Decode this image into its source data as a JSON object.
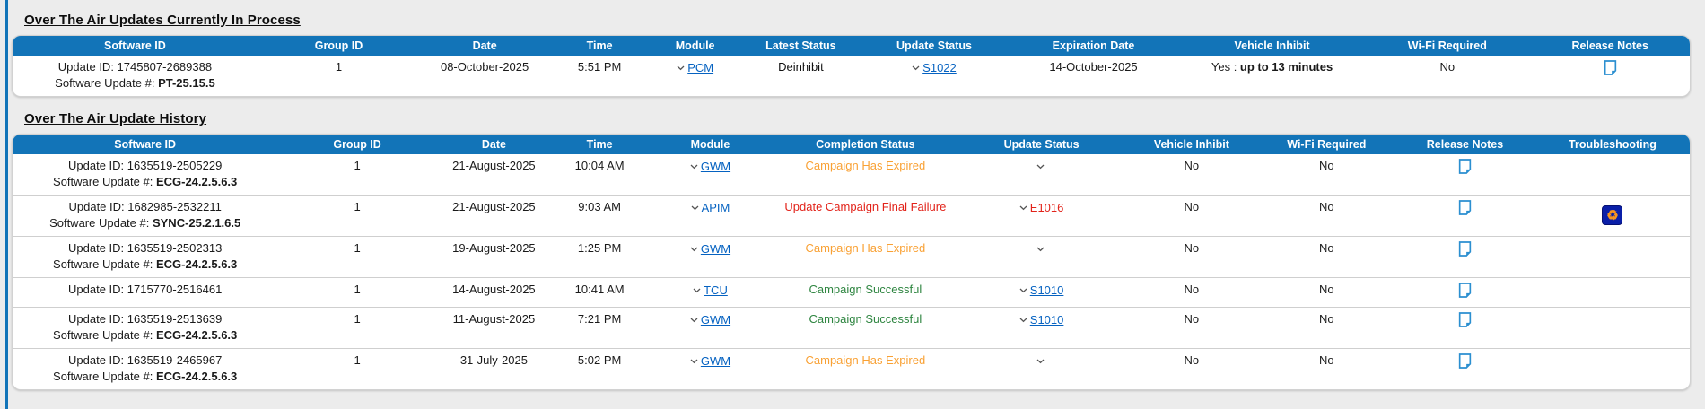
{
  "colors": {
    "header_bar": "#1274B8",
    "page_bg": "#ECECEC",
    "link_blue": "#0562C1",
    "status_expired": "#F9A134",
    "status_failed": "#E2231A",
    "status_success": "#2E8540",
    "note_icon": "#2B8FD0",
    "troubleshoot_bg": "#0A1FA8",
    "troubleshoot_glyph": "#F7941D"
  },
  "labels": {
    "update_id_prefix": "Update ID: ",
    "software_update_prefix": "Software Update #: "
  },
  "in_process": {
    "title": "Over The Air Updates Currently In Process",
    "columns": [
      "Software ID",
      "Group ID",
      "Date",
      "Time",
      "Module",
      "Latest Status",
      "Update Status",
      "Expiration Date",
      "Vehicle Inhibit",
      "Wi-Fi Required",
      "Release Notes"
    ],
    "rows": [
      {
        "update_id": "1745807-2689388",
        "software_update": "PT-25.15.5",
        "group_id": "1",
        "date": "08-October-2025",
        "time": "5:51 PM",
        "module": "PCM",
        "latest_status": "Deinhibit",
        "status_kind": "plain",
        "update_status": "S1022",
        "expiration_date": "14-October-2025",
        "vehicle_inhibit_prefix": "Yes : ",
        "vehicle_inhibit_bold": "up to 13 minutes",
        "wifi_required": "No",
        "release_notes": true
      }
    ]
  },
  "history": {
    "title": "Over The Air Update History",
    "columns": [
      "Software ID",
      "Group ID",
      "Date",
      "Time",
      "Module",
      "Completion Status",
      "Update Status",
      "Vehicle Inhibit",
      "Wi-Fi Required",
      "Release Notes",
      "Troubleshooting"
    ],
    "rows": [
      {
        "update_id": "1635519-2505229",
        "software_update": "ECG-24.2.5.6.3",
        "group_id": "1",
        "date": "21-August-2025",
        "time": "10:04 AM",
        "module": "GWM",
        "completion_status": "Campaign Has Expired",
        "status_kind": "expired",
        "update_status": "",
        "vehicle_inhibit": "No",
        "wifi_required": "No",
        "release_notes": true,
        "troubleshooting": false
      },
      {
        "update_id": "1682985-2532211",
        "software_update": "SYNC-25.2.1.6.5",
        "group_id": "1",
        "date": "21-August-2025",
        "time": "9:03 AM",
        "module": "APIM",
        "completion_status": "Update Campaign Final Failure",
        "status_kind": "failed",
        "update_status": "E1016",
        "vehicle_inhibit": "No",
        "wifi_required": "No",
        "release_notes": true,
        "troubleshooting": true
      },
      {
        "update_id": "1635519-2502313",
        "software_update": "ECG-24.2.5.6.3",
        "group_id": "1",
        "date": "19-August-2025",
        "time": "1:25 PM",
        "module": "GWM",
        "completion_status": "Campaign Has Expired",
        "status_kind": "expired",
        "update_status": "",
        "vehicle_inhibit": "No",
        "wifi_required": "No",
        "release_notes": true,
        "troubleshooting": false
      },
      {
        "update_id": "1715770-2516461",
        "software_update": "",
        "group_id": "1",
        "date": "14-August-2025",
        "time": "10:41 AM",
        "module": "TCU",
        "completion_status": "Campaign Successful",
        "status_kind": "success",
        "update_status": "S1010",
        "vehicle_inhibit": "No",
        "wifi_required": "No",
        "release_notes": true,
        "troubleshooting": false
      },
      {
        "update_id": "1635519-2513639",
        "software_update": "ECG-24.2.5.6.3",
        "group_id": "1",
        "date": "11-August-2025",
        "time": "7:21 PM",
        "module": "GWM",
        "completion_status": "Campaign Successful",
        "status_kind": "success",
        "update_status": "S1010",
        "vehicle_inhibit": "No",
        "wifi_required": "No",
        "release_notes": true,
        "troubleshooting": false
      },
      {
        "update_id": "1635519-2465967",
        "software_update": "ECG-24.2.5.6.3",
        "group_id": "1",
        "date": "31-July-2025",
        "time": "5:02 PM",
        "module": "GWM",
        "completion_status": "Campaign Has Expired",
        "status_kind": "expired",
        "update_status": "",
        "vehicle_inhibit": "No",
        "wifi_required": "No",
        "release_notes": true,
        "troubleshooting": false
      }
    ]
  }
}
